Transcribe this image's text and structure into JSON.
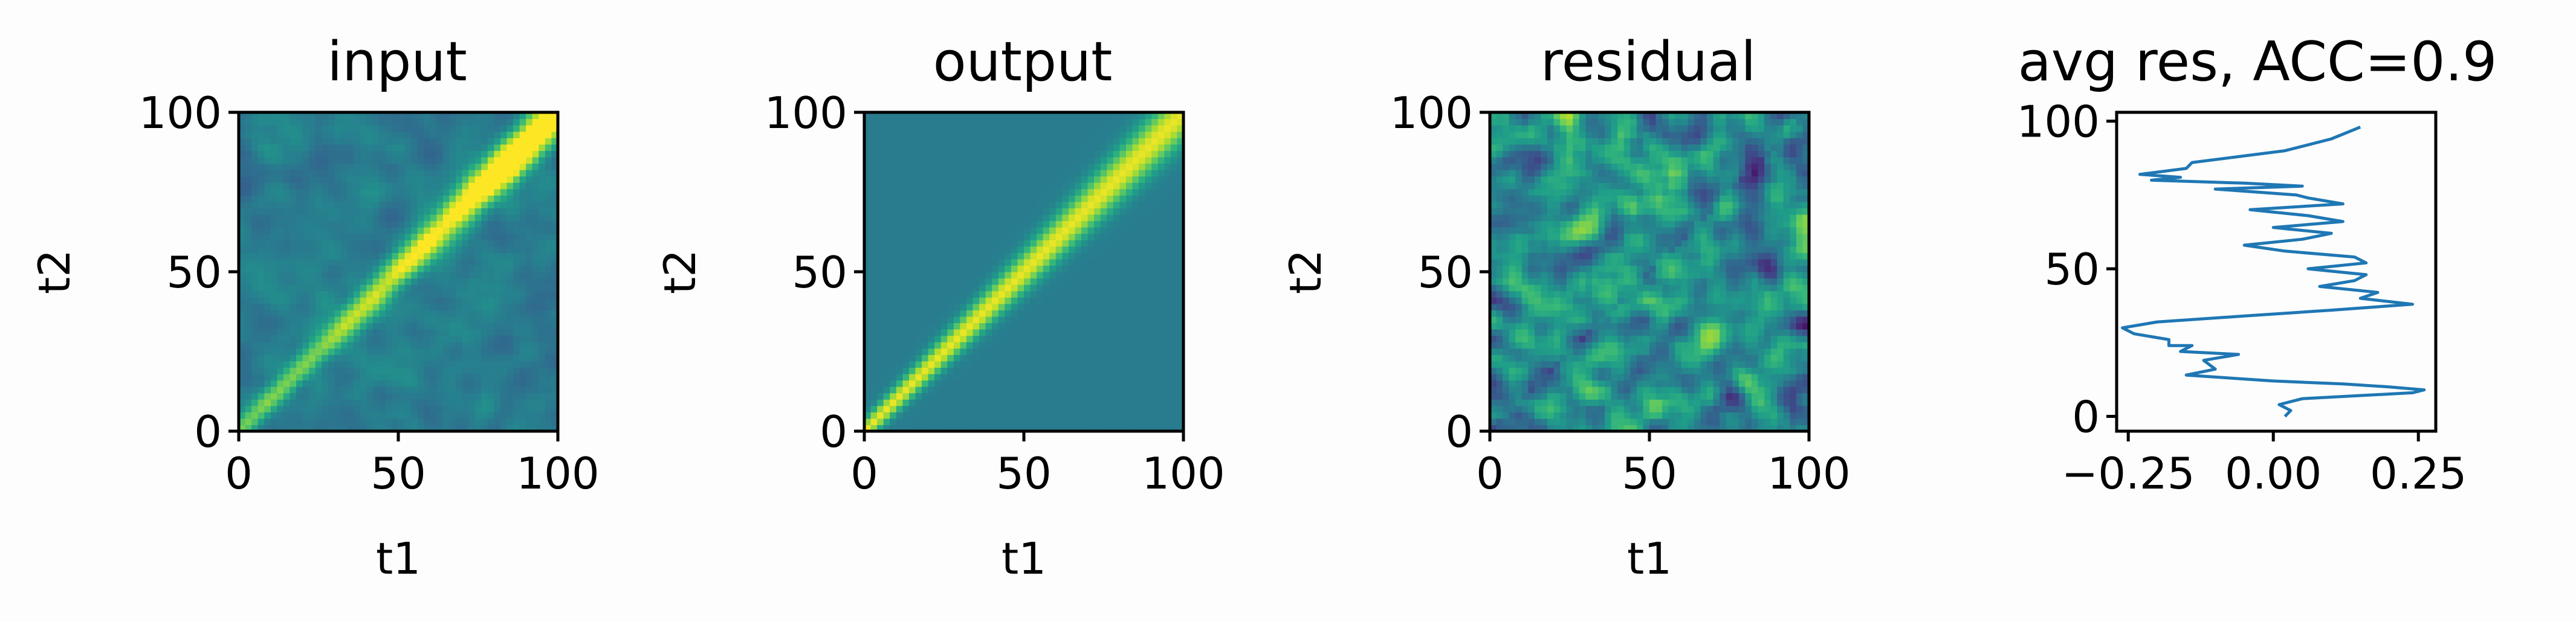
{
  "chart_data": [
    {
      "type": "heatmap",
      "title": "input",
      "xlabel": "t1",
      "ylabel": "t2",
      "xlim": [
        0,
        100
      ],
      "ylim": [
        0,
        100
      ],
      "xticks": [
        "0",
        "50",
        "100"
      ],
      "yticks": [
        "0",
        "50",
        "100"
      ],
      "colormap": "viridis",
      "pattern": "diagonal band, strongest near (85, 85), background slightly noisy teal",
      "diagonal_width": 4,
      "diagonal_peak_at": 85,
      "background_level": 0.42,
      "noise": 0.04
    },
    {
      "type": "heatmap",
      "title": "output",
      "xlabel": "t1",
      "ylabel": "t2",
      "xlim": [
        0,
        100
      ],
      "ylim": [
        0,
        100
      ],
      "xticks": [
        "0",
        "50",
        "100"
      ],
      "yticks": [
        "0",
        "50",
        "100"
      ],
      "colormap": "viridis",
      "pattern": "smooth diagonal band widening from (0,0) to (100,100), uniform teal background",
      "diagonal_width": 4,
      "background_level": 0.42,
      "noise": 0.0
    },
    {
      "type": "heatmap",
      "title": "residual",
      "xlabel": "t1",
      "ylabel": "t2",
      "xlim": [
        0,
        100
      ],
      "ylim": [
        0,
        100
      ],
      "xticks": [
        "0",
        "50",
        "100"
      ],
      "yticks": [
        "0",
        "50",
        "100"
      ],
      "colormap": "viridis",
      "pattern": "noisy residual, dark spot near (83, 83), faint diagonal streaks",
      "dark_spot": [
        83,
        83
      ],
      "background_level": 0.5,
      "noise": 0.09
    },
    {
      "type": "line",
      "title": "avg res, ACC=0.9",
      "xlabel": "",
      "ylabel": "",
      "xlim": [
        -0.27,
        0.28
      ],
      "ylim": [
        -5,
        103
      ],
      "xticks": [
        "−0.25",
        "0.00",
        "0.25"
      ],
      "xtick_values": [
        -0.25,
        0.0,
        0.25
      ],
      "yticks": [
        "0",
        "50",
        "100"
      ],
      "ytick_values": [
        0,
        50,
        100
      ],
      "color": "#1f77b4",
      "series": [
        {
          "x": [
            0.02,
            0.03,
            0.01,
            0.05,
            0.24,
            0.26,
            0.2,
            0.12,
            0.0,
            -0.15,
            -0.1,
            -0.12,
            -0.06,
            -0.16,
            -0.14,
            -0.18,
            -0.18,
            -0.24,
            -0.26,
            -0.2,
            -0.05,
            0.1,
            0.24,
            0.15,
            0.18,
            0.08,
            0.14,
            0.16,
            0.06,
            0.16,
            0.14,
            0.02,
            -0.05,
            0.05,
            0.1,
            0.0,
            0.12,
            0.06,
            -0.04,
            0.12,
            0.06,
            0.04,
            -0.1,
            0.05,
            -0.05,
            -0.21,
            -0.16,
            -0.23,
            -0.15,
            -0.14,
            0.02,
            0.1,
            0.15
          ],
          "y": [
            0,
            2,
            4,
            6,
            8,
            9,
            10,
            11,
            12,
            14,
            16,
            19,
            21,
            22,
            24,
            24,
            26,
            28,
            30,
            32,
            34,
            36,
            38,
            40,
            42,
            44,
            46,
            48,
            50,
            52,
            54,
            56,
            58,
            60,
            62,
            64,
            66,
            68,
            70,
            72,
            74,
            75,
            77,
            78,
            79,
            80,
            81,
            82,
            84,
            86,
            90,
            94,
            98
          ]
        }
      ]
    }
  ]
}
